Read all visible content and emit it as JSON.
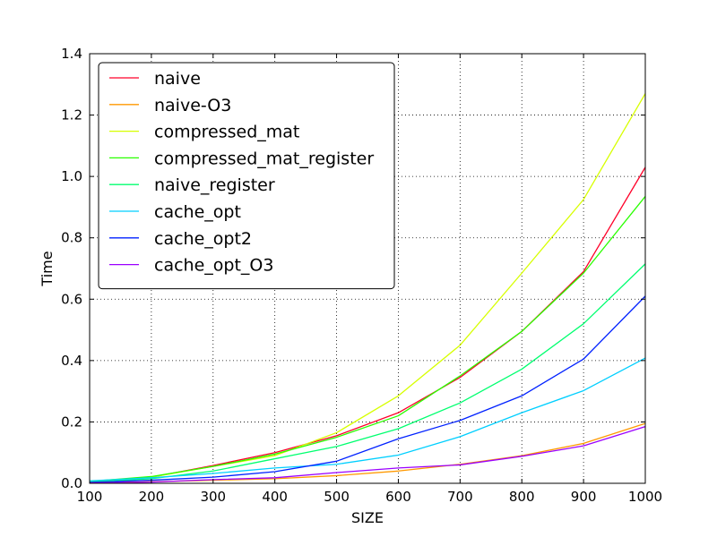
{
  "chart_data": {
    "type": "line",
    "title": "",
    "xlabel": "SIZE",
    "ylabel": "Time",
    "xlim": [
      100,
      1000
    ],
    "ylim": [
      0.0,
      1.4
    ],
    "xticks": [
      "100",
      "200",
      "300",
      "400",
      "500",
      "600",
      "700",
      "800",
      "900",
      "1000"
    ],
    "yticks": [
      "0.0",
      "0.2",
      "0.4",
      "0.6",
      "0.8",
      "1.0",
      "1.2",
      "1.4"
    ],
    "grid": true,
    "grid_style": "dotted",
    "legend_position": "upper-left",
    "x": [
      100,
      200,
      300,
      400,
      500,
      600,
      700,
      800,
      900,
      1000
    ],
    "series": [
      {
        "name": "naive",
        "color": "#ff0029",
        "values": [
          0.005,
          0.02,
          0.058,
          0.1,
          0.155,
          0.23,
          0.345,
          0.495,
          0.69,
          1.03
        ]
      },
      {
        "name": "naive-O3",
        "color": "#ff9900",
        "values": [
          0.002,
          0.005,
          0.01,
          0.015,
          0.025,
          0.04,
          0.062,
          0.09,
          0.13,
          0.195
        ]
      },
      {
        "name": "compressed_mat",
        "color": "#d7ff00",
        "values": [
          0.005,
          0.02,
          0.055,
          0.09,
          0.165,
          0.285,
          0.45,
          0.685,
          0.925,
          1.27
        ]
      },
      {
        "name": "compressed_mat_register",
        "color": "#2aff00",
        "values": [
          0.006,
          0.022,
          0.055,
          0.095,
          0.15,
          0.22,
          0.35,
          0.495,
          0.685,
          0.935
        ]
      },
      {
        "name": "naive_register",
        "color": "#00ff6f",
        "values": [
          0.004,
          0.015,
          0.04,
          0.08,
          0.12,
          0.178,
          0.262,
          0.372,
          0.52,
          0.715
        ]
      },
      {
        "name": "cache_opt",
        "color": "#00cfff",
        "values": [
          0.008,
          0.018,
          0.032,
          0.05,
          0.062,
          0.092,
          0.152,
          0.23,
          0.302,
          0.408
        ]
      },
      {
        "name": "cache_opt2",
        "color": "#0021ff",
        "values": [
          0.003,
          0.01,
          0.02,
          0.038,
          0.072,
          0.145,
          0.205,
          0.285,
          0.405,
          0.61
        ]
      },
      {
        "name": "cache_opt_O3",
        "color": "#9b00ff",
        "values": [
          0.001,
          0.004,
          0.012,
          0.018,
          0.035,
          0.05,
          0.06,
          0.088,
          0.122,
          0.185
        ]
      }
    ]
  }
}
